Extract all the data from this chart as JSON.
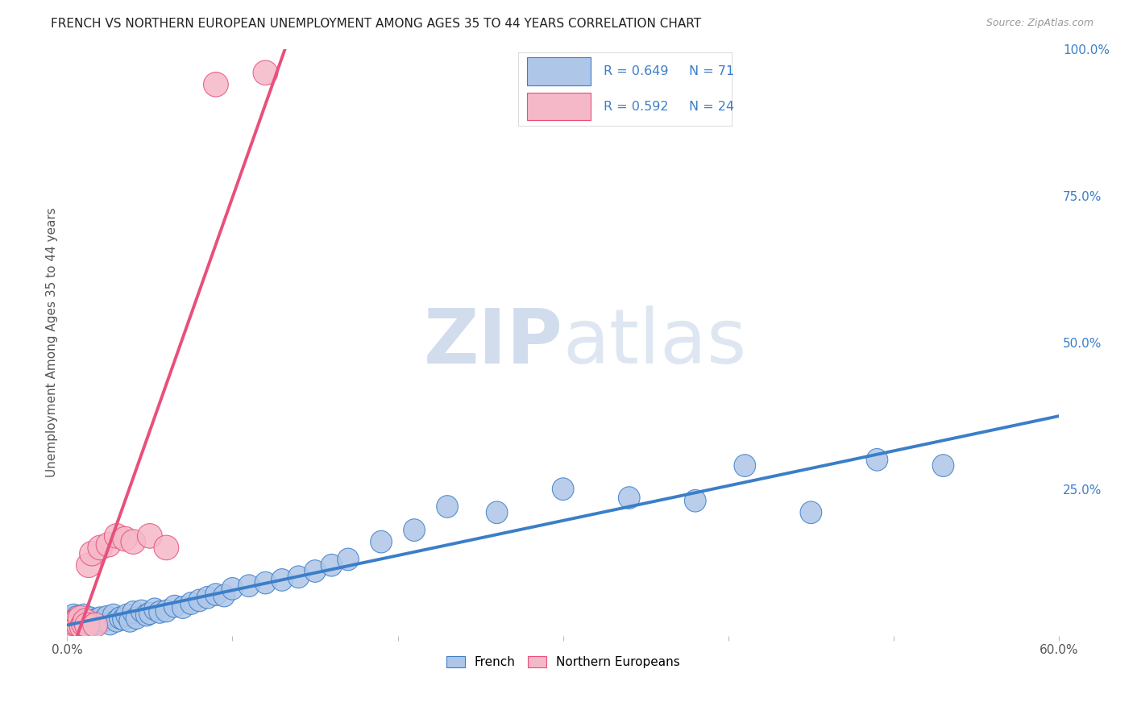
{
  "title": "FRENCH VS NORTHERN EUROPEAN UNEMPLOYMENT AMONG AGES 35 TO 44 YEARS CORRELATION CHART",
  "source": "Source: ZipAtlas.com",
  "ylabel": "Unemployment Among Ages 35 to 44 years",
  "xlim": [
    0.0,
    0.6
  ],
  "ylim": [
    0.0,
    1.0
  ],
  "xtick_positions": [
    0.0,
    0.1,
    0.2,
    0.3,
    0.4,
    0.5,
    0.6
  ],
  "xtick_labels": [
    "0.0%",
    "",
    "",
    "",
    "",
    "",
    "60.0%"
  ],
  "ytick_vals_right": [
    0.25,
    0.5,
    0.75,
    1.0
  ],
  "ytick_labels_right": [
    "25.0%",
    "50.0%",
    "75.0%",
    "100.0%"
  ],
  "legend_R_french": "R = 0.649",
  "legend_N_french": "N = 71",
  "legend_R_northern": "R = 0.592",
  "legend_N_northern": "N = 24",
  "french_color": "#aec6e8",
  "northern_color": "#f5b8c8",
  "french_line_color": "#3b7ec8",
  "northern_line_color": "#e8507a",
  "watermark_color": "#ccdaec",
  "background_color": "#ffffff",
  "grid_color": "#d8d8d8",
  "title_fontsize": 11,
  "axis_label_fontsize": 11,
  "tick_fontsize": 11,
  "french_x": [
    0.001,
    0.002,
    0.003,
    0.003,
    0.004,
    0.004,
    0.005,
    0.005,
    0.006,
    0.006,
    0.007,
    0.007,
    0.008,
    0.008,
    0.009,
    0.009,
    0.01,
    0.01,
    0.011,
    0.012,
    0.013,
    0.014,
    0.015,
    0.016,
    0.017,
    0.018,
    0.019,
    0.02,
    0.022,
    0.024,
    0.026,
    0.028,
    0.03,
    0.032,
    0.034,
    0.036,
    0.038,
    0.04,
    0.042,
    0.045,
    0.048,
    0.05,
    0.053,
    0.056,
    0.06,
    0.065,
    0.07,
    0.075,
    0.08,
    0.085,
    0.09,
    0.095,
    0.1,
    0.11,
    0.12,
    0.13,
    0.14,
    0.15,
    0.16,
    0.17,
    0.19,
    0.21,
    0.23,
    0.26,
    0.3,
    0.34,
    0.38,
    0.41,
    0.45,
    0.49,
    0.53
  ],
  "french_y": [
    0.02,
    0.025,
    0.018,
    0.03,
    0.022,
    0.035,
    0.015,
    0.028,
    0.02,
    0.032,
    0.018,
    0.025,
    0.022,
    0.03,
    0.015,
    0.028,
    0.02,
    0.035,
    0.018,
    0.025,
    0.022,
    0.03,
    0.018,
    0.025,
    0.02,
    0.028,
    0.022,
    0.03,
    0.025,
    0.032,
    0.02,
    0.035,
    0.025,
    0.03,
    0.028,
    0.035,
    0.025,
    0.04,
    0.03,
    0.042,
    0.035,
    0.038,
    0.045,
    0.04,
    0.042,
    0.05,
    0.048,
    0.055,
    0.06,
    0.065,
    0.07,
    0.068,
    0.08,
    0.085,
    0.09,
    0.095,
    0.1,
    0.11,
    0.12,
    0.13,
    0.16,
    0.18,
    0.22,
    0.21,
    0.25,
    0.235,
    0.23,
    0.29,
    0.21,
    0.3,
    0.29
  ],
  "northern_x": [
    0.001,
    0.002,
    0.003,
    0.004,
    0.005,
    0.006,
    0.007,
    0.008,
    0.009,
    0.01,
    0.011,
    0.012,
    0.013,
    0.015,
    0.017,
    0.02,
    0.025,
    0.03,
    0.035,
    0.04,
    0.05,
    0.06,
    0.09,
    0.12
  ],
  "northern_y": [
    0.018,
    0.02,
    0.022,
    0.015,
    0.02,
    0.025,
    0.018,
    0.03,
    0.015,
    0.02,
    0.025,
    0.018,
    0.12,
    0.14,
    0.018,
    0.15,
    0.155,
    0.17,
    0.165,
    0.16,
    0.17,
    0.15,
    0.94,
    0.96
  ],
  "northern_trend_x": [
    0.0,
    0.165
  ],
  "northern_trend_y_start": 0.0,
  "blue_trend_x_start": 0.0,
  "blue_trend_x_end": 0.6
}
